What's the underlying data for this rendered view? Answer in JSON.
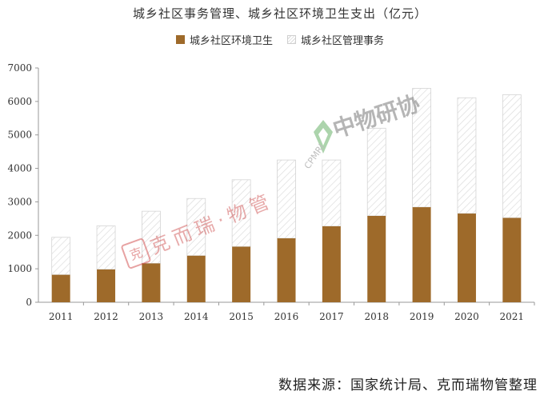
{
  "title": "城乡社区事务管理、城乡社区环境卫生支出（亿元）",
  "source": "数据来源：国家统计局、克而瑞物管整理",
  "watermarks": {
    "cpmri_cn": "中物研协",
    "cpmri_en": "CPMRI",
    "kerui": "克而瑞·物管",
    "kerui_seal": "克"
  },
  "colors": {
    "environment": "#9e6a2a",
    "management_hatch": "#d9d9d9",
    "axis": "#999999"
  },
  "chart_data": {
    "type": "bar",
    "stacked": true,
    "categories": [
      "2011",
      "2012",
      "2013",
      "2014",
      "2015",
      "2016",
      "2017",
      "2018",
      "2019",
      "2020",
      "2021"
    ],
    "series": [
      {
        "name": "城乡社区环境卫生",
        "values": [
          820,
          980,
          1160,
          1390,
          1660,
          1910,
          2270,
          2580,
          2840,
          2650,
          2520
        ]
      },
      {
        "name": "城乡社区管理事务",
        "values": [
          1120,
          1300,
          1560,
          1710,
          2000,
          2340,
          1980,
          2620,
          3550,
          3460,
          3680
        ]
      }
    ],
    "totals": [
      1940,
      2280,
      2720,
      3100,
      3660,
      4250,
      4250,
      5200,
      6390,
      6110,
      6200
    ],
    "ylim": [
      0,
      7000
    ],
    "yticks": [
      0,
      1000,
      2000,
      3000,
      4000,
      5000,
      6000,
      7000
    ],
    "legend_position": "top-center",
    "grid": false
  }
}
